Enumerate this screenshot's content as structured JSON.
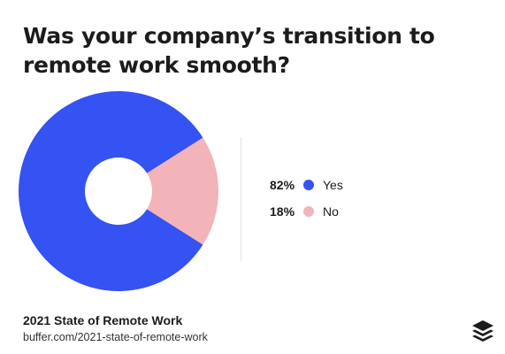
{
  "title": "Was your company’s transition to remote work smooth?",
  "chart_data": {
    "type": "pie",
    "donut": true,
    "slices": [
      {
        "label": "Yes",
        "value": 82,
        "display": "82%",
        "color": "#3552f2"
      },
      {
        "label": "No",
        "value": 18,
        "display": "18%",
        "color": "#f2b3b9"
      }
    ],
    "legend_position": "right"
  },
  "footer": {
    "title": "2021 State of Remote Work",
    "url": "buffer.com/2021-state-of-remote-work"
  },
  "logo": {
    "icon": "buffer-stack-icon"
  }
}
